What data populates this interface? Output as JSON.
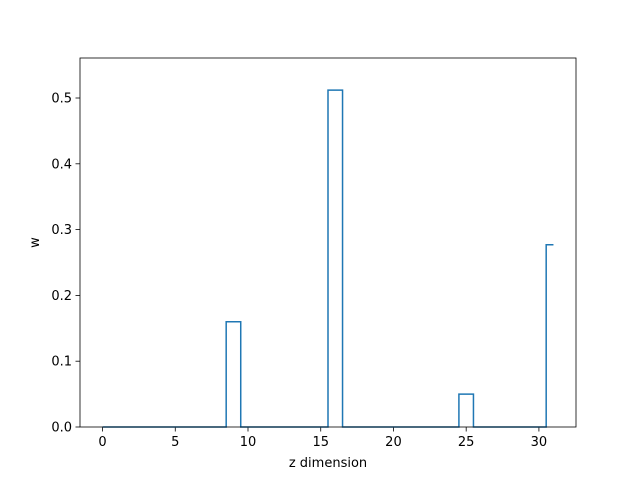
{
  "chart_data": {
    "type": "line",
    "drawstyle": "steps-mid",
    "title": "",
    "xlabel": "z dimension",
    "ylabel": "w",
    "xlim": [
      -1.55,
      32.55
    ],
    "ylim": [
      0,
      0.5608
    ],
    "xticks": [
      0,
      5,
      10,
      15,
      20,
      25,
      30
    ],
    "yticks": [
      0.0,
      0.1,
      0.2,
      0.3,
      0.4,
      0.5
    ],
    "ytick_labels": [
      "0.0",
      "0.1",
      "0.2",
      "0.3",
      "0.4",
      "0.5"
    ],
    "grid": false,
    "legend": "none",
    "series": [
      {
        "color": "#1f77b4",
        "x": [
          0,
          1,
          2,
          3,
          4,
          5,
          6,
          7,
          8,
          9,
          10,
          11,
          12,
          13,
          14,
          15,
          16,
          17,
          18,
          19,
          20,
          21,
          22,
          23,
          24,
          25,
          26,
          27,
          28,
          29,
          30,
          31
        ],
        "values": [
          0,
          0,
          0,
          0,
          0,
          0,
          0,
          0,
          0,
          0.16,
          0,
          0,
          0,
          0,
          0,
          0,
          0.512,
          0,
          0,
          0,
          0,
          0,
          0,
          0,
          0,
          0.05,
          0,
          0,
          0,
          0,
          0,
          0.277
        ]
      }
    ]
  }
}
